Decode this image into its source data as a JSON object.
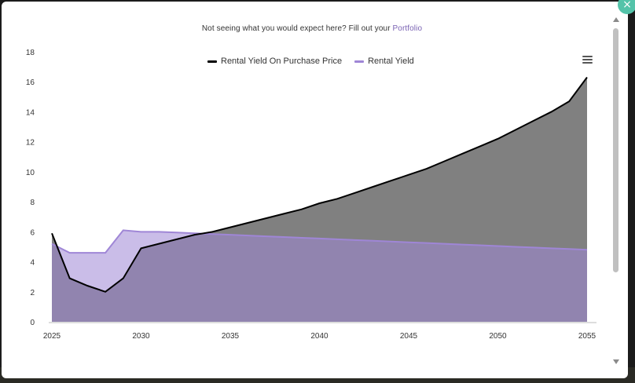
{
  "notice": {
    "text": "Not seeing what you would expect here? Fill out your",
    "link": "Portfolio"
  },
  "menu_icon": "hamburger-menu-icon",
  "close_icon": "close-icon",
  "close_glyph": "×",
  "colors": {
    "rental_yield_on_purchase_line": "#000000",
    "rental_yield_on_purchase_fill": "#808080",
    "rental_yield_line": "#9f86d6",
    "rental_yield_fill": "#8a76a8",
    "overlap_line": "#4b3466",
    "accent": "#54c3a9"
  },
  "chart_data": {
    "type": "area",
    "x": [
      2025,
      2026,
      2027,
      2028,
      2029,
      2030,
      2031,
      2032,
      2033,
      2034,
      2035,
      2036,
      2037,
      2038,
      2039,
      2040,
      2041,
      2042,
      2043,
      2044,
      2045,
      2046,
      2047,
      2048,
      2049,
      2050,
      2051,
      2052,
      2053,
      2054,
      2055
    ],
    "series": [
      {
        "name": "Rental Yield On Purchase Price",
        "values": [
          5.9,
          2.9,
          2.4,
          2.0,
          2.9,
          4.9,
          5.2,
          5.5,
          5.8,
          6.0,
          6.3,
          6.6,
          6.9,
          7.2,
          7.5,
          7.9,
          8.2,
          8.6,
          9.0,
          9.4,
          9.8,
          10.2,
          10.7,
          11.2,
          11.7,
          12.2,
          12.8,
          13.4,
          14.0,
          14.7,
          16.3
        ]
      },
      {
        "name": "Rental Yield",
        "values": [
          5.2,
          4.6,
          4.6,
          4.6,
          6.1,
          6.0,
          6.0,
          5.95,
          5.9,
          5.85,
          5.8,
          5.75,
          5.7,
          5.65,
          5.6,
          5.55,
          5.5,
          5.45,
          5.4,
          5.35,
          5.3,
          5.25,
          5.2,
          5.15,
          5.1,
          5.05,
          5.0,
          4.95,
          4.9,
          4.85,
          4.8
        ]
      }
    ],
    "xticks": [
      "2025",
      "2030",
      "2035",
      "2040",
      "2045",
      "2050",
      "2055"
    ],
    "yticks": [
      "0",
      "2",
      "4",
      "6",
      "8",
      "10",
      "12",
      "14",
      "16",
      "18"
    ],
    "xlim": [
      2025,
      2055
    ],
    "ylim": [
      0,
      18
    ],
    "legend": "top-center",
    "grid": false
  }
}
